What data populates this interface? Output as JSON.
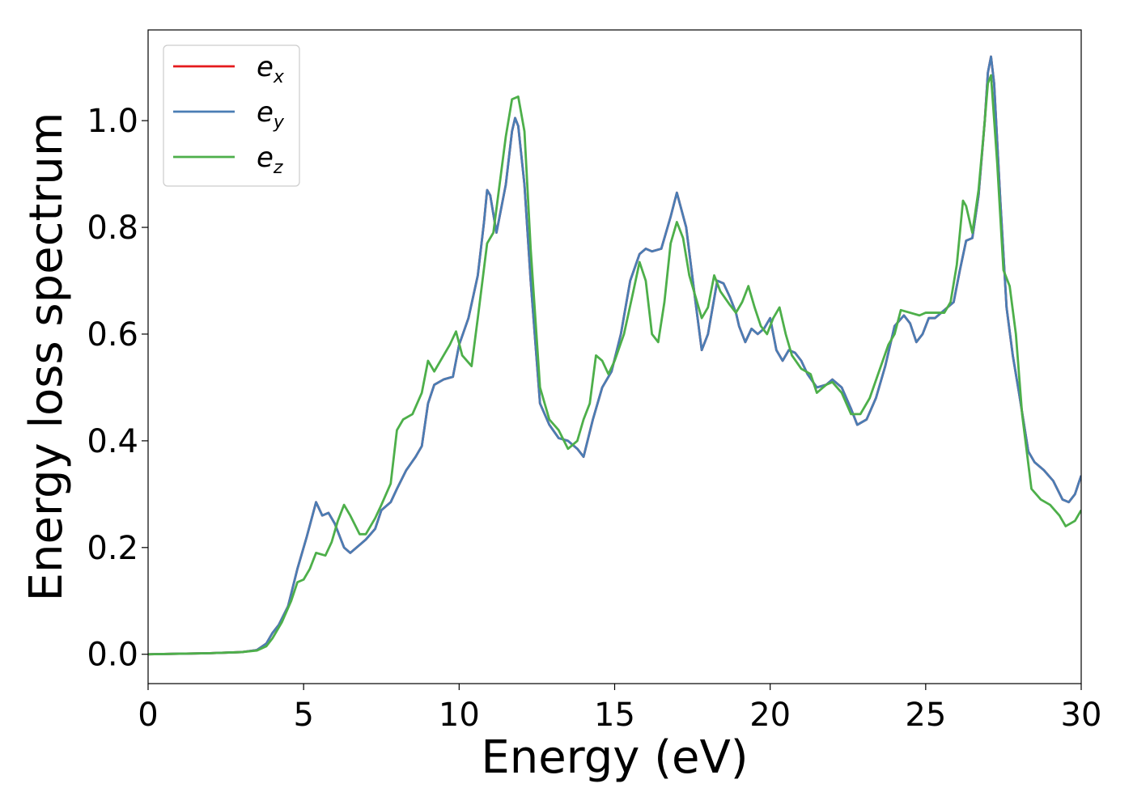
{
  "chart_data": {
    "type": "line",
    "xlabel": "Energy (eV)",
    "ylabel": "Energy loss spectrum",
    "xlim": [
      0,
      30
    ],
    "ylim": [
      -0.055,
      1.17
    ],
    "xticks": [
      0,
      5,
      10,
      15,
      20,
      25,
      30
    ],
    "xtick_labels": [
      "0",
      "5",
      "10",
      "15",
      "20",
      "25",
      "30"
    ],
    "yticks": [
      0.0,
      0.2,
      0.4,
      0.6,
      0.8,
      1.0
    ],
    "ytick_labels": [
      "0.0",
      "0.2",
      "0.4",
      "0.6",
      "0.8",
      "1.0"
    ],
    "grid": false,
    "legend_position": "top-left",
    "series": [
      {
        "name": "e_x",
        "label_base": "e",
        "label_sub": "x",
        "color": "#e41a1c",
        "x": [
          0,
          1,
          2,
          3,
          3.5,
          3.8,
          4.0,
          4.2,
          4.5,
          4.8,
          5.1,
          5.4,
          5.6,
          5.8,
          6.0,
          6.3,
          6.5,
          6.8,
          7.0,
          7.3,
          7.5,
          7.8,
          8.0,
          8.3,
          8.6,
          8.8,
          9.0,
          9.2,
          9.5,
          9.8,
          10.0,
          10.3,
          10.6,
          10.8,
          10.9,
          11.0,
          11.2,
          11.5,
          11.7,
          11.8,
          11.9,
          12.1,
          12.3,
          12.6,
          12.9,
          13.2,
          13.5,
          13.8,
          14.0,
          14.3,
          14.6,
          14.9,
          15.2,
          15.5,
          15.8,
          16.0,
          16.2,
          16.5,
          16.8,
          17.0,
          17.3,
          17.6,
          17.8,
          18.0,
          18.3,
          18.5,
          18.7,
          18.9,
          19.0,
          19.2,
          19.4,
          19.6,
          19.8,
          20.0,
          20.2,
          20.4,
          20.6,
          20.8,
          21.0,
          21.2,
          21.5,
          21.8,
          22.0,
          22.3,
          22.6,
          22.8,
          23.1,
          23.4,
          23.7,
          24.0,
          24.3,
          24.5,
          24.7,
          24.9,
          25.1,
          25.3,
          25.6,
          25.9,
          26.1,
          26.3,
          26.5,
          26.7,
          26.9,
          27.0,
          27.1,
          27.2,
          27.4,
          27.6,
          27.8,
          28.0,
          28.3,
          28.5,
          28.8,
          29.1,
          29.4,
          29.6,
          29.8,
          30.0
        ],
        "y": [
          0.0,
          0.001,
          0.002,
          0.004,
          0.008,
          0.02,
          0.04,
          0.055,
          0.09,
          0.16,
          0.22,
          0.285,
          0.26,
          0.265,
          0.245,
          0.2,
          0.19,
          0.205,
          0.215,
          0.235,
          0.27,
          0.285,
          0.31,
          0.345,
          0.37,
          0.39,
          0.47,
          0.505,
          0.515,
          0.52,
          0.58,
          0.63,
          0.71,
          0.81,
          0.87,
          0.86,
          0.79,
          0.88,
          0.98,
          1.005,
          0.99,
          0.88,
          0.7,
          0.47,
          0.43,
          0.405,
          0.4,
          0.385,
          0.37,
          0.44,
          0.5,
          0.53,
          0.6,
          0.7,
          0.75,
          0.76,
          0.755,
          0.76,
          0.82,
          0.865,
          0.8,
          0.66,
          0.57,
          0.6,
          0.7,
          0.695,
          0.67,
          0.64,
          0.615,
          0.585,
          0.61,
          0.6,
          0.61,
          0.63,
          0.57,
          0.55,
          0.57,
          0.565,
          0.55,
          0.525,
          0.5,
          0.505,
          0.515,
          0.5,
          0.46,
          0.43,
          0.44,
          0.48,
          0.54,
          0.615,
          0.635,
          0.62,
          0.585,
          0.6,
          0.63,
          0.63,
          0.645,
          0.66,
          0.72,
          0.775,
          0.78,
          0.86,
          1.0,
          1.09,
          1.12,
          1.07,
          0.85,
          0.65,
          0.56,
          0.49,
          0.38,
          0.36,
          0.345,
          0.325,
          0.29,
          0.285,
          0.3,
          0.335
        ]
      },
      {
        "name": "e_y",
        "label_base": "e",
        "label_sub": "y",
        "color": "#4a7db4",
        "x": [
          0,
          1,
          2,
          3,
          3.5,
          3.8,
          4.0,
          4.2,
          4.5,
          4.8,
          5.1,
          5.4,
          5.6,
          5.8,
          6.0,
          6.3,
          6.5,
          6.8,
          7.0,
          7.3,
          7.5,
          7.8,
          8.0,
          8.3,
          8.6,
          8.8,
          9.0,
          9.2,
          9.5,
          9.8,
          10.0,
          10.3,
          10.6,
          10.8,
          10.9,
          11.0,
          11.2,
          11.5,
          11.7,
          11.8,
          11.9,
          12.1,
          12.3,
          12.6,
          12.9,
          13.2,
          13.5,
          13.8,
          14.0,
          14.3,
          14.6,
          14.9,
          15.2,
          15.5,
          15.8,
          16.0,
          16.2,
          16.5,
          16.8,
          17.0,
          17.3,
          17.6,
          17.8,
          18.0,
          18.3,
          18.5,
          18.7,
          18.9,
          19.0,
          19.2,
          19.4,
          19.6,
          19.8,
          20.0,
          20.2,
          20.4,
          20.6,
          20.8,
          21.0,
          21.2,
          21.5,
          21.8,
          22.0,
          22.3,
          22.6,
          22.8,
          23.1,
          23.4,
          23.7,
          24.0,
          24.3,
          24.5,
          24.7,
          24.9,
          25.1,
          25.3,
          25.6,
          25.9,
          26.1,
          26.3,
          26.5,
          26.7,
          26.9,
          27.0,
          27.1,
          27.2,
          27.4,
          27.6,
          27.8,
          28.0,
          28.3,
          28.5,
          28.8,
          29.1,
          29.4,
          29.6,
          29.8,
          30.0
        ],
        "y": [
          0.0,
          0.001,
          0.002,
          0.004,
          0.008,
          0.02,
          0.04,
          0.055,
          0.09,
          0.16,
          0.22,
          0.285,
          0.26,
          0.265,
          0.245,
          0.2,
          0.19,
          0.205,
          0.215,
          0.235,
          0.27,
          0.285,
          0.31,
          0.345,
          0.37,
          0.39,
          0.47,
          0.505,
          0.515,
          0.52,
          0.58,
          0.63,
          0.71,
          0.81,
          0.87,
          0.86,
          0.79,
          0.88,
          0.98,
          1.005,
          0.99,
          0.88,
          0.7,
          0.47,
          0.43,
          0.405,
          0.4,
          0.385,
          0.37,
          0.44,
          0.5,
          0.53,
          0.6,
          0.7,
          0.75,
          0.76,
          0.755,
          0.76,
          0.82,
          0.865,
          0.8,
          0.66,
          0.57,
          0.6,
          0.7,
          0.695,
          0.67,
          0.64,
          0.615,
          0.585,
          0.61,
          0.6,
          0.61,
          0.63,
          0.57,
          0.55,
          0.57,
          0.565,
          0.55,
          0.525,
          0.5,
          0.505,
          0.515,
          0.5,
          0.46,
          0.43,
          0.44,
          0.48,
          0.54,
          0.615,
          0.635,
          0.62,
          0.585,
          0.6,
          0.63,
          0.63,
          0.645,
          0.66,
          0.72,
          0.775,
          0.78,
          0.86,
          1.0,
          1.09,
          1.12,
          1.07,
          0.85,
          0.65,
          0.56,
          0.49,
          0.38,
          0.36,
          0.345,
          0.325,
          0.29,
          0.285,
          0.3,
          0.335
        ]
      },
      {
        "name": "e_z",
        "label_base": "e",
        "label_sub": "z",
        "color": "#4daf4a",
        "x": [
          0,
          1,
          2,
          3,
          3.5,
          3.8,
          4.0,
          4.3,
          4.6,
          4.8,
          5.0,
          5.2,
          5.4,
          5.7,
          5.9,
          6.1,
          6.3,
          6.5,
          6.8,
          7.0,
          7.3,
          7.5,
          7.8,
          8.0,
          8.2,
          8.5,
          8.8,
          9.0,
          9.2,
          9.5,
          9.7,
          9.9,
          10.1,
          10.4,
          10.6,
          10.9,
          11.1,
          11.3,
          11.5,
          11.7,
          11.9,
          12.1,
          12.3,
          12.6,
          12.9,
          13.2,
          13.5,
          13.8,
          14.0,
          14.2,
          14.4,
          14.6,
          14.8,
          15.0,
          15.3,
          15.6,
          15.8,
          16.0,
          16.2,
          16.4,
          16.6,
          16.8,
          17.0,
          17.2,
          17.4,
          17.6,
          17.8,
          18.0,
          18.2,
          18.4,
          18.7,
          18.9,
          19.1,
          19.3,
          19.5,
          19.7,
          19.9,
          20.1,
          20.3,
          20.5,
          20.7,
          21.0,
          21.3,
          21.5,
          21.8,
          22.0,
          22.3,
          22.6,
          22.9,
          23.2,
          23.5,
          23.8,
          24.0,
          24.2,
          24.5,
          24.8,
          25.0,
          25.3,
          25.6,
          25.8,
          26.0,
          26.2,
          26.3,
          26.5,
          26.7,
          26.9,
          27.0,
          27.1,
          27.3,
          27.5,
          27.7,
          27.9,
          28.1,
          28.4,
          28.7,
          29.0,
          29.3,
          29.5,
          29.8,
          30.0
        ],
        "y": [
          0.0,
          0.001,
          0.002,
          0.004,
          0.007,
          0.015,
          0.03,
          0.06,
          0.1,
          0.135,
          0.14,
          0.16,
          0.19,
          0.185,
          0.21,
          0.25,
          0.28,
          0.26,
          0.225,
          0.225,
          0.255,
          0.28,
          0.32,
          0.42,
          0.44,
          0.45,
          0.49,
          0.55,
          0.53,
          0.56,
          0.58,
          0.605,
          0.56,
          0.54,
          0.63,
          0.77,
          0.79,
          0.88,
          0.97,
          1.04,
          1.045,
          0.98,
          0.76,
          0.5,
          0.44,
          0.42,
          0.385,
          0.4,
          0.44,
          0.47,
          0.56,
          0.55,
          0.525,
          0.55,
          0.6,
          0.68,
          0.735,
          0.7,
          0.6,
          0.585,
          0.66,
          0.77,
          0.81,
          0.78,
          0.71,
          0.67,
          0.63,
          0.65,
          0.71,
          0.68,
          0.655,
          0.64,
          0.66,
          0.69,
          0.65,
          0.615,
          0.6,
          0.63,
          0.65,
          0.6,
          0.56,
          0.535,
          0.525,
          0.49,
          0.505,
          0.51,
          0.49,
          0.45,
          0.45,
          0.48,
          0.53,
          0.58,
          0.6,
          0.645,
          0.64,
          0.635,
          0.64,
          0.64,
          0.64,
          0.66,
          0.73,
          0.85,
          0.84,
          0.79,
          0.87,
          1.0,
          1.07,
          1.085,
          0.92,
          0.72,
          0.69,
          0.6,
          0.45,
          0.31,
          0.29,
          0.28,
          0.26,
          0.24,
          0.25,
          0.27
        ]
      }
    ]
  }
}
